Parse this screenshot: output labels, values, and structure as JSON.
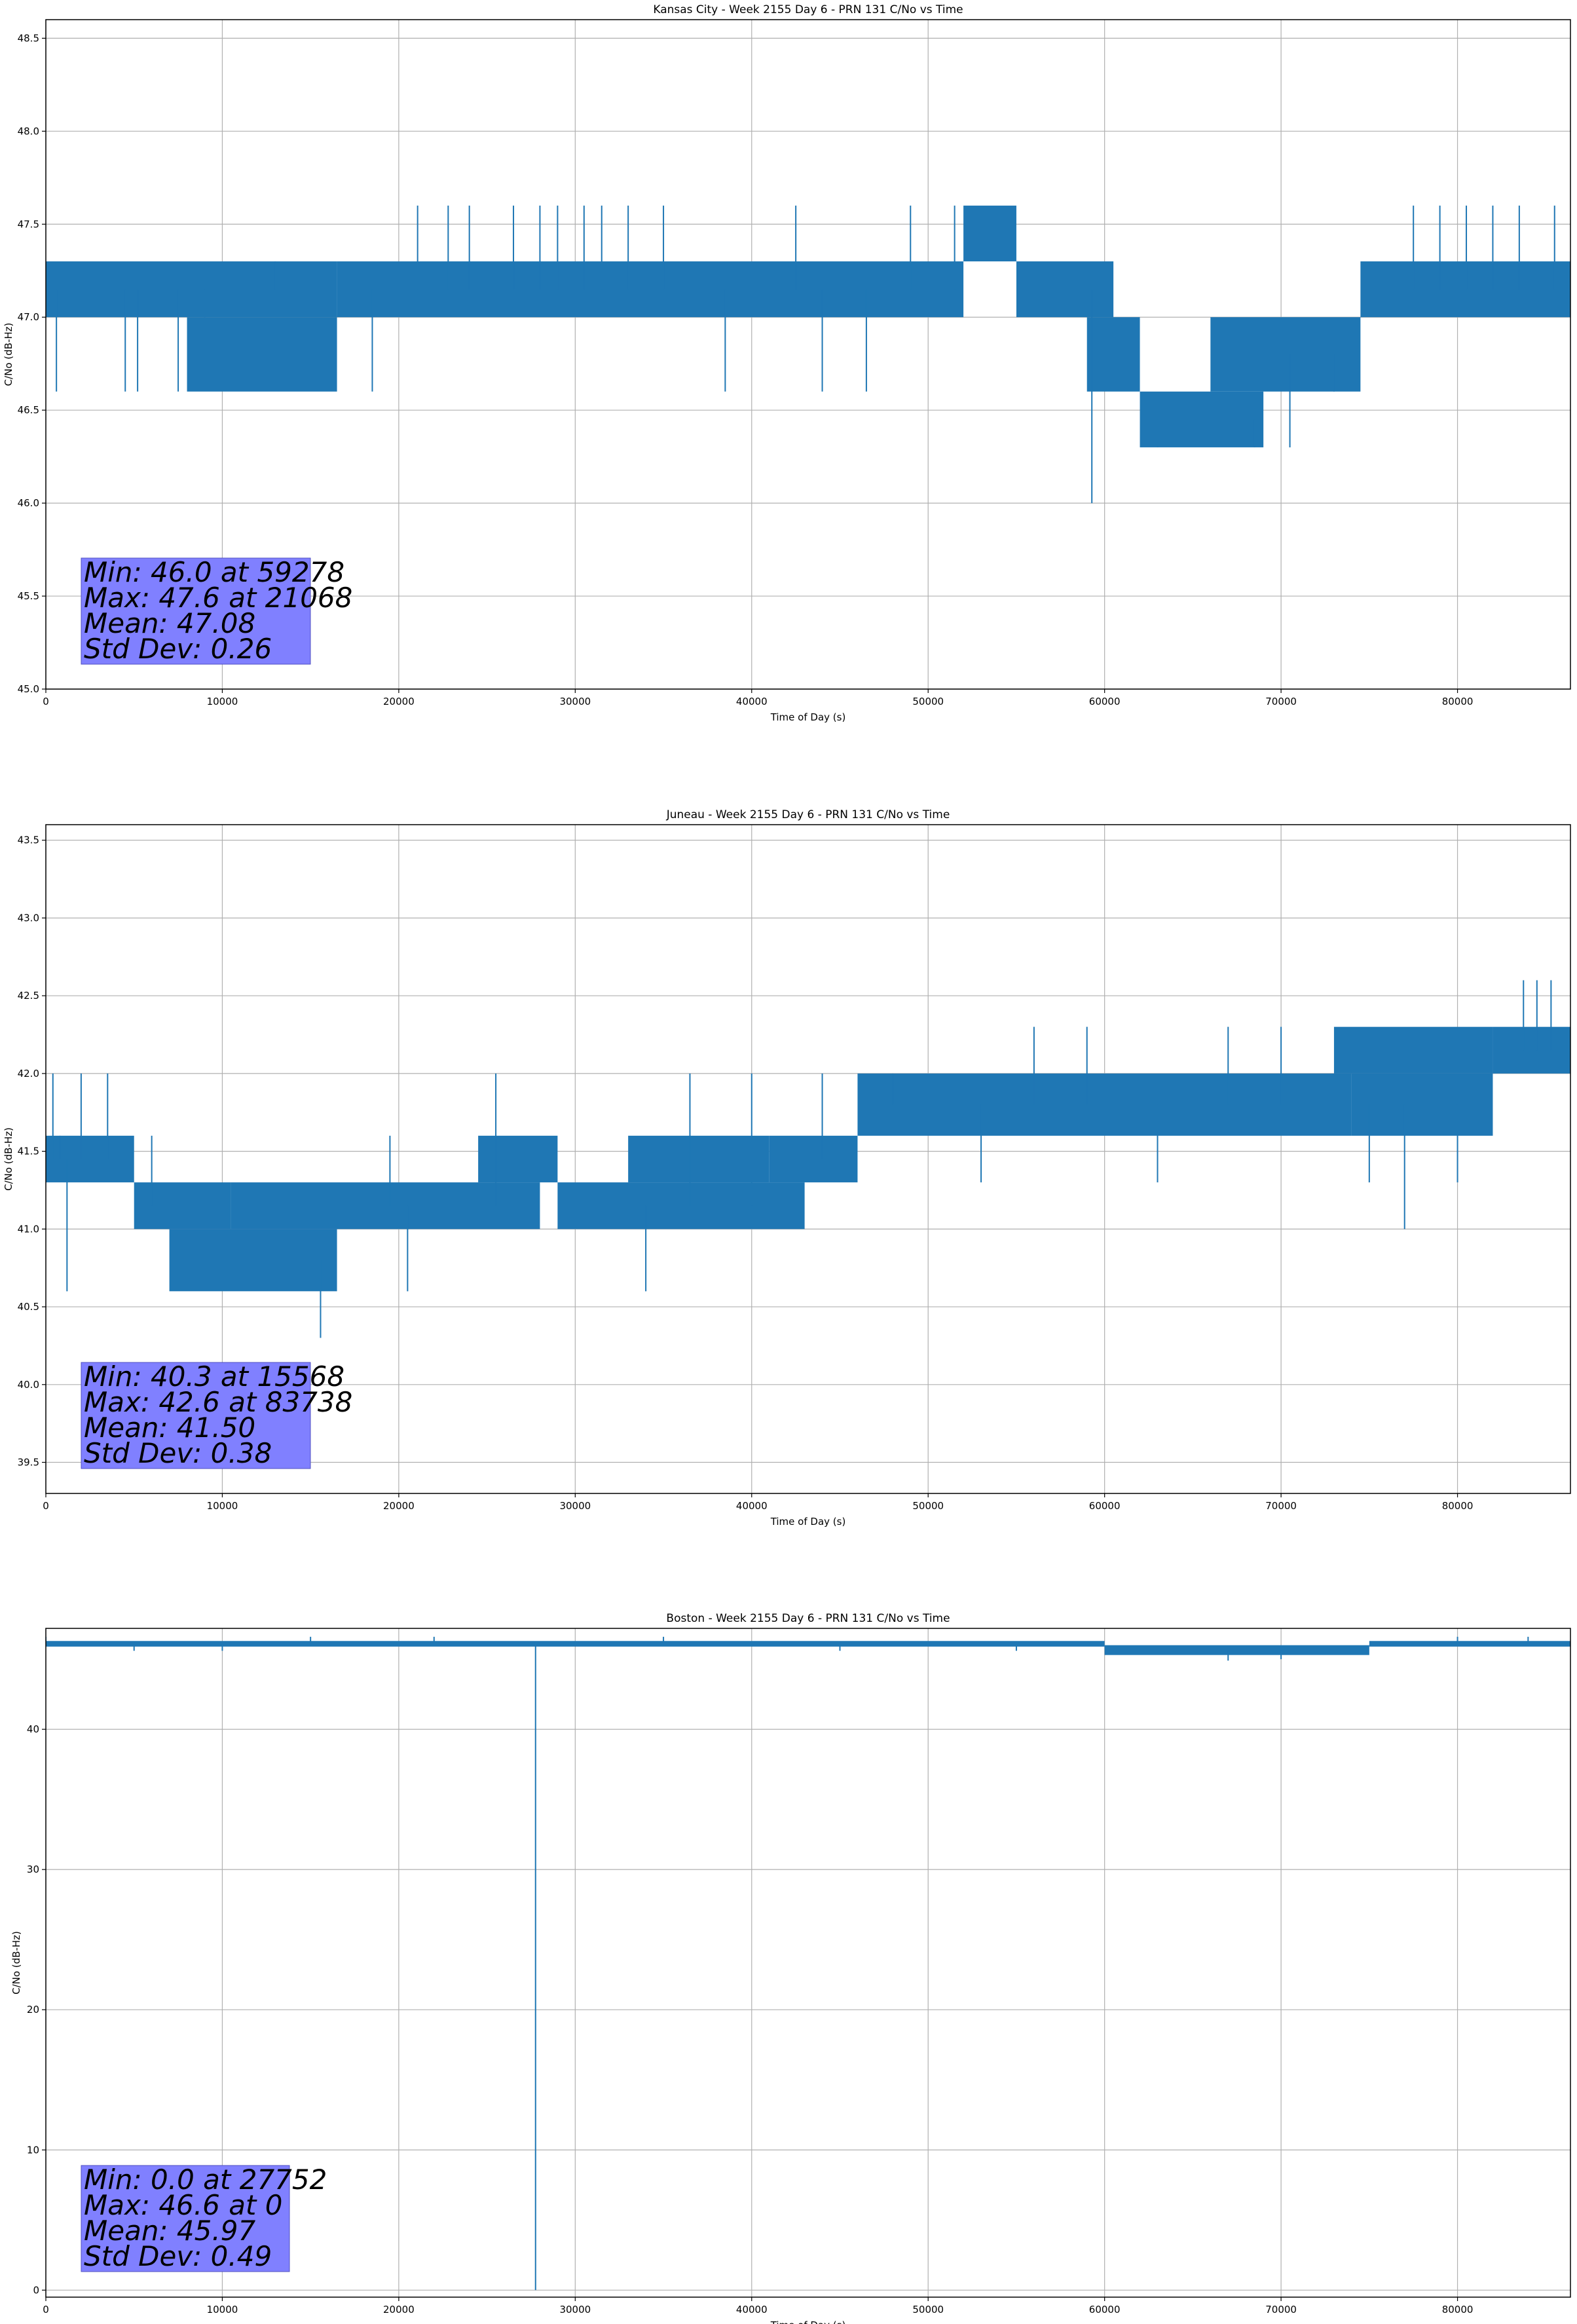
{
  "chart_data": [
    {
      "type": "line",
      "title": "Kansas City - Week 2155 Day 6 - PRN 131 C/No vs Time",
      "xlabel": "Time of Day (s)",
      "ylabel": "C/No (dB-Hz)",
      "xlim": [
        0,
        86400
      ],
      "ylim": [
        45.0,
        48.6
      ],
      "xticks": [
        0,
        10000,
        20000,
        30000,
        40000,
        50000,
        60000,
        70000,
        80000
      ],
      "yticks": [
        45.0,
        45.5,
        46.0,
        46.5,
        47.0,
        47.5,
        48.0,
        48.5
      ],
      "ytick_format": 1,
      "grid": true,
      "series_color": "#1f77b4",
      "band_segments": [
        {
          "x0": 0,
          "x1": 16500,
          "lo": 47.0,
          "hi": 47.3
        },
        {
          "x0": 8000,
          "x1": 16500,
          "lo": 46.6,
          "hi": 47.0
        },
        {
          "x0": 16500,
          "x1": 52000,
          "lo": 47.0,
          "hi": 47.3
        },
        {
          "x0": 52000,
          "x1": 55000,
          "lo": 47.3,
          "hi": 47.6
        },
        {
          "x0": 55000,
          "x1": 60500,
          "lo": 47.0,
          "hi": 47.3
        },
        {
          "x0": 59000,
          "x1": 62000,
          "lo": 46.6,
          "hi": 47.0
        },
        {
          "x0": 62000,
          "x1": 69000,
          "lo": 46.3,
          "hi": 46.6
        },
        {
          "x0": 66000,
          "x1": 74500,
          "lo": 46.6,
          "hi": 47.0
        },
        {
          "x0": 74500,
          "x1": 86400,
          "lo": 47.0,
          "hi": 47.3
        }
      ],
      "spikes": [
        [
          600,
          46.6
        ],
        [
          4500,
          46.6
        ],
        [
          5200,
          46.6
        ],
        [
          7500,
          46.6
        ],
        [
          9000,
          47.0
        ],
        [
          13000,
          47.3
        ],
        [
          18500,
          46.6
        ],
        [
          21068,
          47.6
        ],
        [
          22800,
          47.6
        ],
        [
          24000,
          47.6
        ],
        [
          26500,
          47.6
        ],
        [
          28000,
          47.6
        ],
        [
          29000,
          47.6
        ],
        [
          30500,
          47.6
        ],
        [
          31500,
          47.6
        ],
        [
          33000,
          47.6
        ],
        [
          35000,
          47.6
        ],
        [
          38500,
          46.6
        ],
        [
          42500,
          47.6
        ],
        [
          44000,
          46.6
        ],
        [
          46500,
          46.6
        ],
        [
          49000,
          47.6
        ],
        [
          51500,
          47.6
        ],
        [
          59278,
          46.0
        ],
        [
          63000,
          46.3
        ],
        [
          68500,
          46.3
        ],
        [
          70500,
          46.3
        ],
        [
          73000,
          46.6
        ],
        [
          77500,
          47.6
        ],
        [
          79000,
          47.6
        ],
        [
          80500,
          47.6
        ],
        [
          82000,
          47.6
        ],
        [
          83500,
          47.6
        ],
        [
          85500,
          47.6
        ]
      ],
      "stats": [
        "Min: 46.0 at 59278",
        "Max: 47.6 at 21068",
        "Mean: 47.08",
        "Std Dev: 0.26"
      ]
    },
    {
      "type": "line",
      "title": "Juneau - Week 2155 Day 6 - PRN 131 C/No vs Time",
      "xlabel": "Time of Day (s)",
      "ylabel": "C/No (dB-Hz)",
      "xlim": [
        0,
        86400
      ],
      "ylim": [
        39.3,
        43.6
      ],
      "xticks": [
        0,
        10000,
        20000,
        30000,
        40000,
        50000,
        60000,
        70000,
        80000
      ],
      "yticks": [
        39.5,
        40.0,
        40.5,
        41.0,
        41.5,
        42.0,
        42.5,
        43.0,
        43.5
      ],
      "ytick_format": 1,
      "grid": true,
      "series_color": "#1f77b4",
      "band_segments": [
        {
          "x0": 0,
          "x1": 5000,
          "lo": 41.3,
          "hi": 41.6
        },
        {
          "x0": 5000,
          "x1": 10500,
          "lo": 41.0,
          "hi": 41.3
        },
        {
          "x0": 7000,
          "x1": 16500,
          "lo": 40.6,
          "hi": 41.0
        },
        {
          "x0": 10500,
          "x1": 28000,
          "lo": 41.0,
          "hi": 41.3
        },
        {
          "x0": 24500,
          "x1": 29000,
          "lo": 41.3,
          "hi": 41.6
        },
        {
          "x0": 29000,
          "x1": 43000,
          "lo": 41.0,
          "hi": 41.3
        },
        {
          "x0": 33000,
          "x1": 41000,
          "lo": 41.3,
          "hi": 41.6
        },
        {
          "x0": 41000,
          "x1": 46000,
          "lo": 41.3,
          "hi": 41.6
        },
        {
          "x0": 46000,
          "x1": 74000,
          "lo": 41.6,
          "hi": 42.0
        },
        {
          "x0": 74000,
          "x1": 82000,
          "lo": 41.6,
          "hi": 42.0
        },
        {
          "x0": 73000,
          "x1": 82000,
          "lo": 42.0,
          "hi": 42.3
        },
        {
          "x0": 82000,
          "x1": 86400,
          "lo": 42.0,
          "hi": 42.3
        }
      ],
      "spikes": [
        [
          400,
          42.0
        ],
        [
          800,
          41.6
        ],
        [
          1200,
          40.6
        ],
        [
          2000,
          42.0
        ],
        [
          3500,
          42.0
        ],
        [
          6000,
          41.6
        ],
        [
          15568,
          40.3
        ],
        [
          19500,
          41.6
        ],
        [
          20500,
          40.6
        ],
        [
          25500,
          42.0
        ],
        [
          34000,
          40.6
        ],
        [
          36500,
          42.0
        ],
        [
          40000,
          42.0
        ],
        [
          44000,
          42.0
        ],
        [
          48000,
          42.0
        ],
        [
          53000,
          41.3
        ],
        [
          56000,
          42.3
        ],
        [
          59000,
          42.3
        ],
        [
          63000,
          41.3
        ],
        [
          67000,
          42.3
        ],
        [
          70000,
          42.3
        ],
        [
          75000,
          41.3
        ],
        [
          77000,
          41.0
        ],
        [
          80000,
          41.3
        ],
        [
          83738,
          42.6
        ],
        [
          84500,
          42.6
        ],
        [
          85300,
          42.6
        ]
      ],
      "stats": [
        "Min: 40.3 at 15568",
        "Max: 42.6 at 83738",
        "Mean: 41.50",
        "Std Dev: 0.38"
      ]
    },
    {
      "type": "line",
      "title": "Boston - Week 2155 Day 6 - PRN 131 C/No vs Time",
      "xlabel": "Time of Day (s)",
      "ylabel": "C/No (dB-Hz)",
      "xlim": [
        0,
        86400
      ],
      "ylim": [
        -0.5,
        47.2
      ],
      "xticks": [
        0,
        10000,
        20000,
        30000,
        40000,
        50000,
        60000,
        70000,
        80000
      ],
      "yticks": [
        0,
        10,
        20,
        30,
        40
      ],
      "ytick_format": 0,
      "grid": true,
      "series_color": "#1f77b4",
      "band_segments": [
        {
          "x0": 0,
          "x1": 60000,
          "lo": 45.9,
          "hi": 46.3
        },
        {
          "x0": 60000,
          "x1": 75000,
          "lo": 45.3,
          "hi": 46.0
        },
        {
          "x0": 75000,
          "x1": 86400,
          "lo": 45.9,
          "hi": 46.3
        }
      ],
      "spikes": [
        [
          0,
          46.6
        ],
        [
          5000,
          45.6
        ],
        [
          10000,
          45.6
        ],
        [
          15000,
          46.6
        ],
        [
          22000,
          46.6
        ],
        [
          27752,
          0.0
        ],
        [
          35000,
          46.6
        ],
        [
          45000,
          45.6
        ],
        [
          55000,
          45.6
        ],
        [
          67000,
          44.9
        ],
        [
          70000,
          45.0
        ],
        [
          80000,
          46.6
        ],
        [
          84000,
          46.6
        ]
      ],
      "stats": [
        "Min: 0.0 at 27752",
        "Max: 46.6 at 0",
        "Mean: 45.97",
        "Std Dev: 0.49"
      ]
    }
  ]
}
